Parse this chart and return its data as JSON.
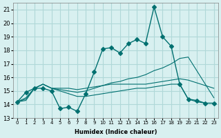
{
  "xlabel": "Humidex (Indice chaleur)",
  "ylabel": "",
  "bg_color": "#d8f0f0",
  "grid_color": "#b0d8d8",
  "line_color": "#007070",
  "xlim": [
    -0.5,
    23.5
  ],
  "ylim": [
    13,
    21.5
  ],
  "yticks": [
    13,
    14,
    15,
    16,
    17,
    18,
    19,
    20,
    21
  ],
  "xticks": [
    0,
    1,
    2,
    3,
    4,
    5,
    6,
    7,
    8,
    9,
    10,
    11,
    12,
    13,
    14,
    15,
    16,
    17,
    18,
    19,
    20,
    21,
    22,
    23
  ],
  "line1": {
    "x": [
      0,
      1,
      2,
      3,
      4,
      5,
      6,
      7,
      8,
      9,
      10,
      11,
      12,
      13,
      14,
      15,
      16,
      17,
      18,
      19,
      20,
      21,
      22,
      23
    ],
    "y": [
      14.2,
      14.9,
      15.2,
      15.2,
      15.0,
      13.7,
      13.8,
      13.5,
      14.8,
      16.4,
      18.1,
      18.2,
      17.8,
      18.5,
      18.8,
      18.5,
      21.2,
      19.0,
      18.3,
      15.5,
      14.4,
      14.3,
      14.1,
      14.1
    ],
    "marker": "D",
    "markersize": 3
  },
  "line2": {
    "x": [
      0,
      1,
      2,
      3,
      4,
      5,
      6,
      7,
      8,
      9,
      10,
      11,
      12,
      13,
      14,
      15,
      16,
      17,
      18,
      19,
      20,
      21,
      22,
      23
    ],
    "y": [
      14.2,
      14.5,
      15.2,
      15.5,
      15.2,
      15.2,
      15.2,
      15.1,
      15.2,
      15.3,
      15.4,
      15.5,
      15.5,
      15.5,
      15.5,
      15.5,
      15.6,
      15.7,
      15.8,
      15.9,
      15.8,
      15.6,
      15.4,
      15.2
    ],
    "marker": null,
    "markersize": 0
  },
  "line3": {
    "x": [
      0,
      1,
      2,
      3,
      4,
      5,
      6,
      7,
      8,
      9,
      10,
      11,
      12,
      13,
      14,
      15,
      16,
      17,
      18,
      19,
      20,
      21,
      22,
      23
    ],
    "y": [
      14.2,
      14.3,
      15.2,
      15.5,
      15.2,
      15.0,
      14.8,
      14.6,
      14.6,
      14.7,
      14.8,
      14.9,
      15.0,
      15.1,
      15.2,
      15.2,
      15.3,
      15.4,
      15.5,
      15.5,
      14.4,
      14.2,
      14.1,
      14.1
    ],
    "marker": null,
    "markersize": 0
  },
  "line4": {
    "x": [
      0,
      1,
      2,
      3,
      4,
      5,
      6,
      7,
      8,
      9,
      10,
      11,
      12,
      13,
      14,
      15,
      16,
      17,
      18,
      19,
      20,
      21,
      22,
      23
    ],
    "y": [
      14.2,
      14.4,
      15.2,
      15.5,
      15.2,
      15.1,
      15.0,
      14.9,
      15.0,
      15.2,
      15.4,
      15.6,
      15.7,
      15.9,
      16.0,
      16.2,
      16.5,
      16.7,
      17.0,
      17.4,
      17.5,
      16.5,
      15.5,
      14.5
    ],
    "marker": null,
    "markersize": 0
  }
}
